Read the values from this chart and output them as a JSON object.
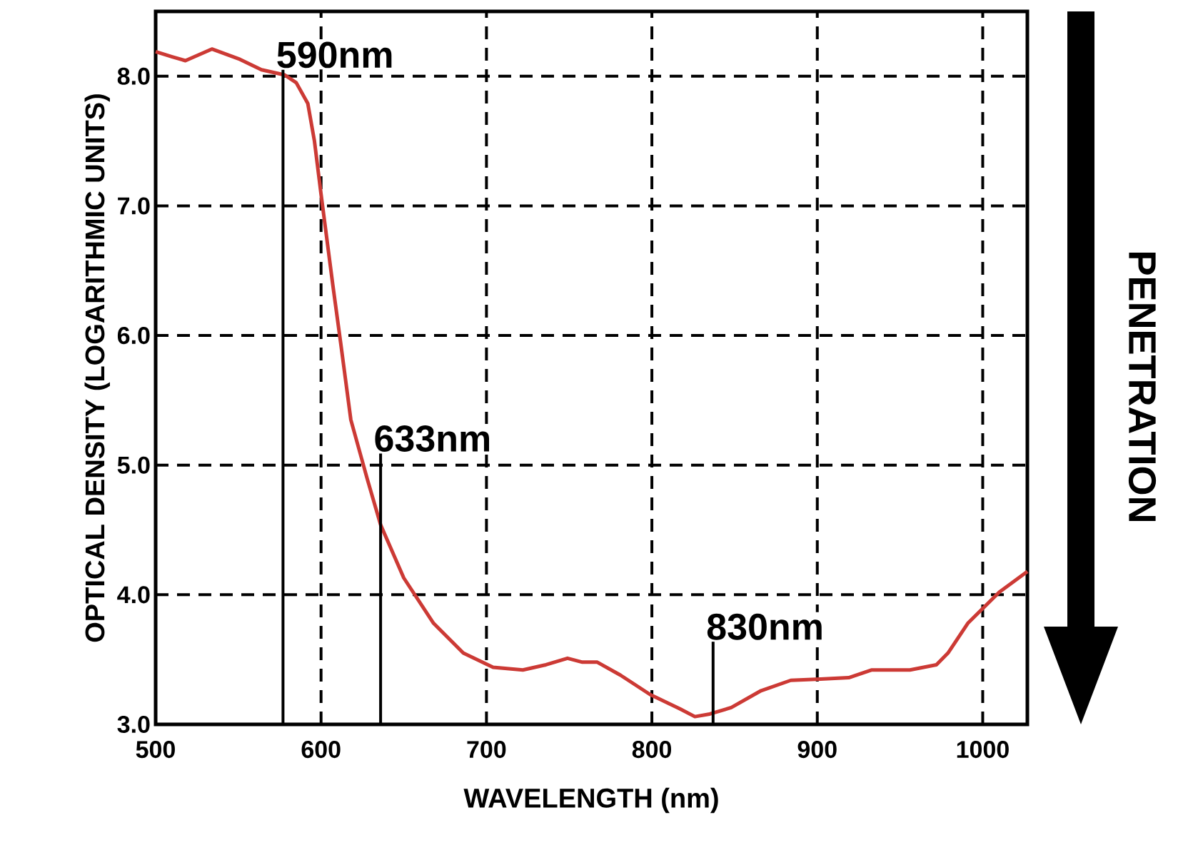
{
  "chart_data": {
    "type": "line",
    "xlabel": "WAVELENGTH (nm)",
    "ylabel": "OPTICAL DENSITY (LOGARITHMIC UNITS)",
    "xlim": [
      500,
      1027
    ],
    "ylim": [
      3,
      8.5
    ],
    "xticks": [
      500,
      600,
      700,
      800,
      900,
      1000
    ],
    "yticks": [
      {
        "value": 3,
        "label": "3.0"
      },
      {
        "value": 4,
        "label": "4.0"
      },
      {
        "value": 5,
        "label": "5.0"
      },
      {
        "value": 6,
        "label": "6.0"
      },
      {
        "value": 7,
        "label": "7.0"
      },
      {
        "value": 8,
        "label": "8.0"
      }
    ],
    "grid": true,
    "line_style": "solid",
    "marker": "none",
    "series": [
      {
        "color": "#cc3a35",
        "x": [
          500,
          510,
          518,
          534,
          551,
          564,
          578,
          585,
          592,
          596,
          600,
          607,
          612,
          618,
          628,
          636,
          650,
          668,
          686,
          704,
          722,
          736,
          749,
          758,
          767,
          781,
          799,
          817,
          826,
          835,
          848,
          866,
          884,
          902,
          919,
          933,
          956,
          972,
          979,
          991,
          1010,
          1027
        ],
        "values": [
          8.19,
          8.15,
          8.12,
          8.21,
          8.13,
          8.05,
          8.01,
          7.95,
          7.79,
          7.5,
          7.09,
          6.4,
          5.93,
          5.35,
          4.89,
          4.54,
          4.13,
          3.78,
          3.55,
          3.44,
          3.42,
          3.46,
          3.51,
          3.48,
          3.48,
          3.38,
          3.23,
          3.12,
          3.06,
          3.08,
          3.13,
          3.26,
          3.34,
          3.35,
          3.36,
          3.42,
          3.42,
          3.46,
          3.55,
          3.78,
          4.02,
          4.18
        ]
      }
    ],
    "ref_lines": [
      {
        "axis": "x",
        "value": 577,
        "label": "590nm"
      },
      {
        "axis": "x",
        "value": 636,
        "label": "633nm"
      },
      {
        "axis": "x",
        "value": 837,
        "label": "830nm"
      }
    ],
    "annotations": [
      "PENETRATION"
    ]
  }
}
